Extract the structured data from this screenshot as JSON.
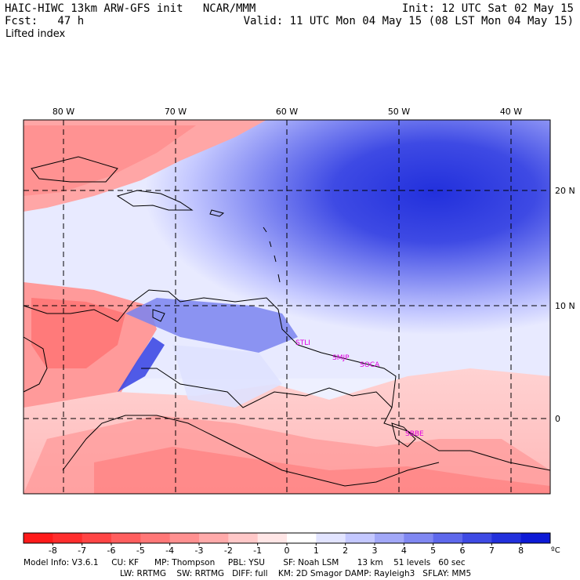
{
  "header": {
    "model_title": "HAIC-HIWC 13km ARW-GFS init   NCAR/MMM",
    "forecast": "Fcst:   47 h",
    "field": "Lifted index",
    "init": "Init: 12 UTC Sat 02 May 15",
    "valid": "Valid: 11 UTC Mon 04 May 15 (08 LST Mon 04 May 15)"
  },
  "map": {
    "longitude_labels": [
      "80 W",
      "70 W",
      "60 W",
      "50 W",
      "40 W"
    ],
    "latitude_labels": [
      "20 N",
      "10 N",
      "0"
    ],
    "sites": [
      "STLI",
      "SMJP",
      "SOCA",
      "SBBE"
    ],
    "colors": {
      "stable_blue": "#2b3fe0",
      "unstable_red": "#f05a5a",
      "contour": "#000000",
      "site_label": "#e000e0",
      "grid": "#000000"
    }
  },
  "colorbar": {
    "ticks": [
      "-8",
      "-7",
      "-6",
      "-5",
      "-4",
      "-3",
      "-2",
      "-1",
      "0",
      "1",
      "2",
      "3",
      "4",
      "5",
      "6",
      "7",
      "8"
    ],
    "unit": "ºC",
    "colors": [
      "#ff1a1a",
      "#ff2d2d",
      "#ff4545",
      "#ff5e5e",
      "#ff7777",
      "#ff9090",
      "#ffaaaa",
      "#ffc8c8",
      "#ffe6e6",
      "#ffffff",
      "#e2e4ff",
      "#c4c8ff",
      "#a2a8f8",
      "#8088f2",
      "#5e68ec",
      "#3e4ae4",
      "#2230dc",
      "#0d1ad6"
    ]
  },
  "footer": {
    "line1": "Model Info: V3.6.1     CU: KF      MP: Thompson     PBL: YSU       SF: Noah LSM       13 km    51 levels   60 sec",
    "line2": "LW: RRTMG    SW: RRTMG   DIFF: full    KM: 2D Smagor DAMP: Rayleigh3   SFLAY: MM5"
  }
}
